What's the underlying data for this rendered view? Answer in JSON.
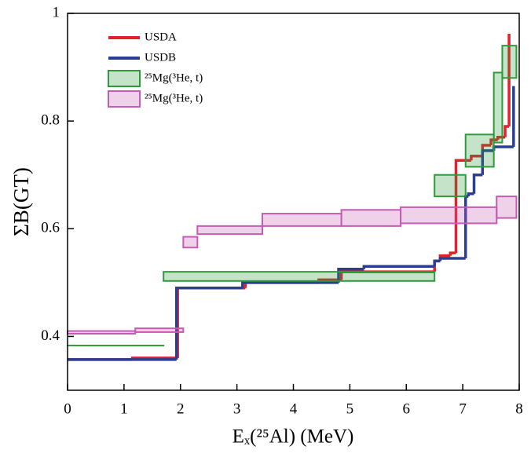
{
  "chart_data": {
    "type": "step",
    "x_label": "Eₓ(²⁵Al) (MeV)",
    "y_label": "ΣB(GT)",
    "xlim": [
      0,
      8
    ],
    "xticks": [
      0,
      1,
      2,
      3,
      4,
      5,
      6,
      7,
      8
    ],
    "ylim": [
      0.3,
      1
    ],
    "yticks": [
      0.4,
      0.6,
      0.8,
      1
    ],
    "series": [
      {
        "name": "USDA",
        "color": "#e3202b",
        "x": [
          0,
          1.15,
          1.95,
          3.15,
          4.45,
          4.85,
          6.5,
          6.6,
          6.78,
          6.88,
          7.15,
          7.35,
          7.5,
          7.62,
          7.75,
          7.82
        ],
        "values": [
          0.357,
          0.36,
          0.49,
          0.5,
          0.505,
          0.52,
          0.54,
          0.55,
          0.555,
          0.727,
          0.735,
          0.755,
          0.765,
          0.77,
          0.79,
          0.962
        ]
      },
      {
        "name": "USDB",
        "color": "#2a3f93",
        "x": [
          0,
          1.93,
          3.1,
          4.8,
          5.25,
          6.5,
          6.6,
          7.05,
          7.1,
          7.2,
          7.35,
          7.55,
          7.9
        ],
        "values": [
          0.357,
          0.49,
          0.5,
          0.525,
          0.53,
          0.54,
          0.545,
          0.66,
          0.665,
          0.7,
          0.745,
          0.752,
          0.865
        ]
      },
      {
        "name": "²⁵Mg(³He, t)",
        "color": "#2e9a3a",
        "band": true,
        "bins": [
          0,
          1.7,
          6.5,
          7.05,
          7.55,
          7.7,
          7.95
        ],
        "lower": [
          0.383,
          0.503,
          0.66,
          0.715,
          0.76,
          0.88
        ],
        "upper": [
          0.383,
          0.52,
          0.7,
          0.775,
          0.89,
          0.94
        ]
      },
      {
        "name": "²⁵Mg(³He, t)",
        "color": "#c45cb4",
        "band": true,
        "bins": [
          0,
          1.2,
          2.05,
          2.3,
          3.45,
          4.85,
          5.9,
          7.6,
          7.95
        ],
        "lower": [
          0.405,
          0.408,
          0.565,
          0.59,
          0.605,
          0.605,
          0.61,
          0.62
        ],
        "upper": [
          0.41,
          0.415,
          0.585,
          0.605,
          0.628,
          0.635,
          0.64,
          0.66
        ]
      }
    ]
  }
}
